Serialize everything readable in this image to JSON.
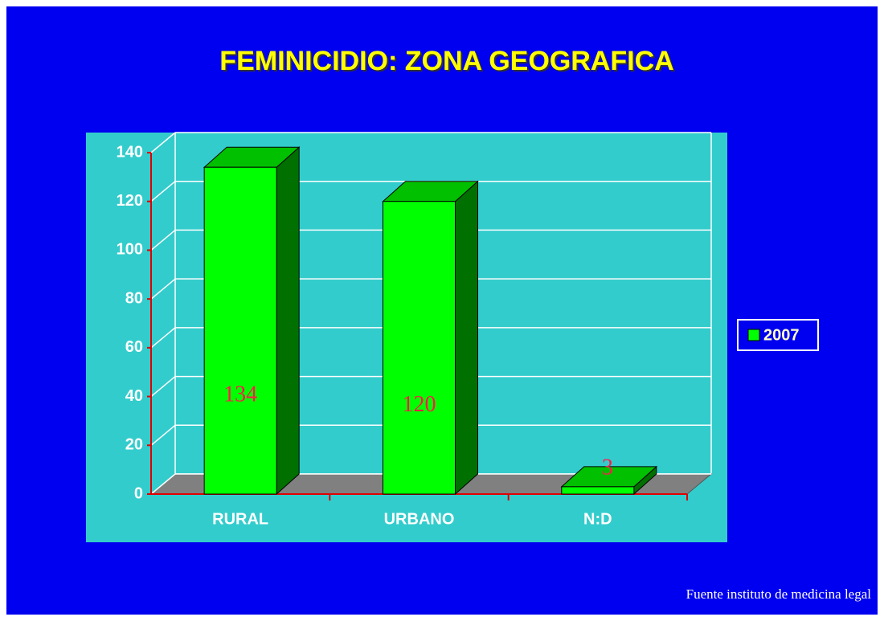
{
  "chart_data": {
    "type": "bar3d",
    "title": "FEMINICIDIO: ZONA GEOGRAFICA",
    "categories": [
      "RURAL",
      "URBANO",
      "N:D"
    ],
    "series": [
      {
        "name": "2007",
        "color": "#00ff00",
        "values": [
          134,
          120,
          3
        ]
      }
    ],
    "ylim": [
      0,
      140
    ],
    "yticks": [
      0,
      20,
      40,
      60,
      80,
      100,
      120,
      140
    ],
    "grid": true,
    "legend": "right",
    "source": "Fuente instituto de medicina legal"
  }
}
